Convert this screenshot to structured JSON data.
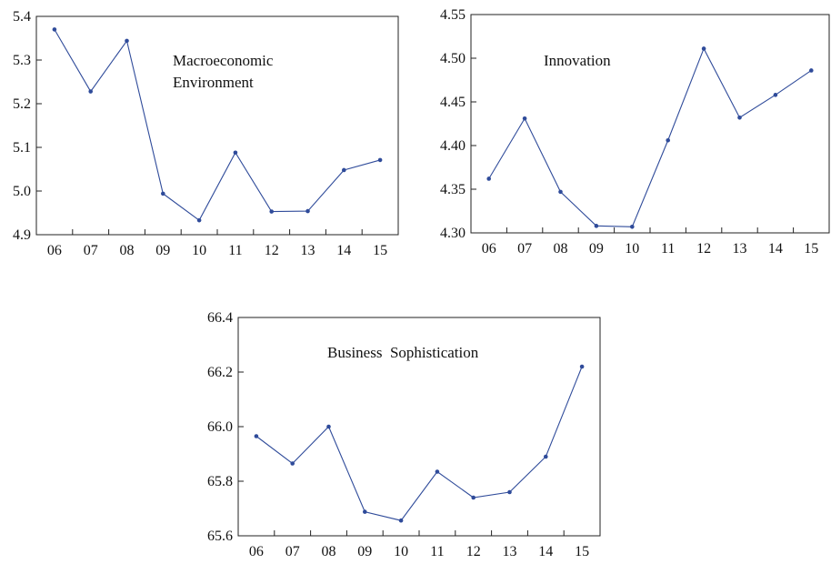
{
  "line_color": "#2f4b9a",
  "chart_data": [
    {
      "type": "line",
      "annotation": [
        "Macroeconomic",
        "Environment"
      ],
      "categories": [
        "06",
        "07",
        "08",
        "09",
        "10",
        "11",
        "12",
        "13",
        "14",
        "15"
      ],
      "series": [
        {
          "values": [
            5.37,
            5.228,
            5.344,
            4.994,
            4.933,
            5.088,
            4.953,
            4.954,
            5.048,
            5.071
          ]
        }
      ],
      "ylim": [
        4.9,
        5.4
      ],
      "yticks": [
        "4.9",
        "5.0",
        "5.1",
        "5.2",
        "5.3",
        "5.4"
      ],
      "grid": false,
      "title": "",
      "xlabel": "",
      "ylabel": ""
    },
    {
      "type": "line",
      "annotation": [
        "Innovation"
      ],
      "categories": [
        "06",
        "07",
        "08",
        "09",
        "10",
        "11",
        "12",
        "13",
        "14",
        "15"
      ],
      "series": [
        {
          "values": [
            4.362,
            4.431,
            4.347,
            4.308,
            4.307,
            4.406,
            4.511,
            4.432,
            4.458,
            4.486
          ]
        }
      ],
      "ylim": [
        4.3,
        4.55
      ],
      "yticks": [
        "4.30",
        "4.35",
        "4.40",
        "4.45",
        "4.50",
        "4.55"
      ],
      "grid": false,
      "title": "",
      "xlabel": "",
      "ylabel": ""
    },
    {
      "type": "line",
      "annotation": [
        "Business  Sophistication"
      ],
      "categories": [
        "06",
        "07",
        "08",
        "09",
        "10",
        "11",
        "12",
        "13",
        "14",
        "15"
      ],
      "series": [
        {
          "values": [
            65.965,
            65.865,
            66.0,
            65.688,
            65.656,
            65.835,
            65.74,
            65.76,
            65.89,
            66.22
          ]
        }
      ],
      "ylim": [
        65.6,
        66.4
      ],
      "yticks": [
        "65.6",
        "65.8",
        "66.0",
        "66.2",
        "66.4"
      ],
      "grid": false,
      "title": "",
      "xlabel": "",
      "ylabel": ""
    }
  ]
}
